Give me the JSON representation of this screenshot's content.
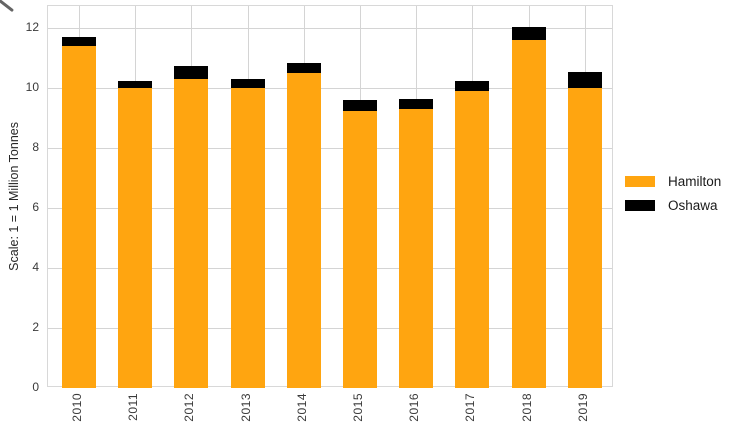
{
  "chart_data": {
    "type": "bar",
    "stacked": true,
    "title": "",
    "xlabel": "",
    "ylabel": "Scale: 1 = 1 Million Tonnes",
    "categories": [
      "2010",
      "2011",
      "2012",
      "2013",
      "2014",
      "2015",
      "2016",
      "2017",
      "2018",
      "2019"
    ],
    "series": [
      {
        "name": "Hamilton",
        "color": "#FFA510",
        "values": [
          11.4,
          10.0,
          10.3,
          10.0,
          10.5,
          9.25,
          9.3,
          9.9,
          11.6,
          10.0
        ]
      },
      {
        "name": "Oshawa",
        "color": "#000000",
        "values": [
          0.3,
          0.25,
          0.45,
          0.3,
          0.35,
          0.35,
          0.35,
          0.35,
          0.45,
          0.55
        ]
      }
    ],
    "stacked_totals": [
      11.7,
      10.25,
      10.75,
      10.3,
      10.85,
      9.6,
      9.65,
      10.25,
      12.05,
      10.55
    ],
    "yticks": [
      0,
      2,
      4,
      6,
      8,
      10,
      12
    ],
    "ylim": [
      0,
      12.7
    ],
    "grid": true,
    "gridline_color": "#d4d4d4",
    "background_color": "#ffffff",
    "legend_position": "center right",
    "x_tick_rotation": 90
  }
}
